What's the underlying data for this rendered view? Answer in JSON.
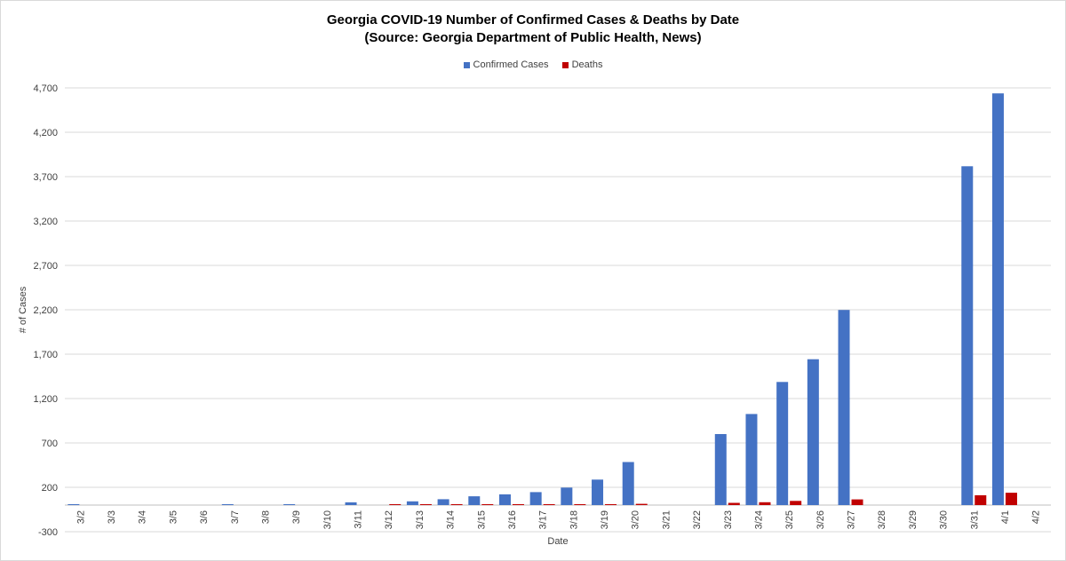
{
  "chart_data": {
    "type": "bar",
    "title_line1": "Georgia COVID-19 Number of Confirmed Cases & Deaths by Date",
    "title_line2": "(Source: Georgia Department of Public Health, News)",
    "xlabel": "Date",
    "ylabel": "# of Cases",
    "ylim": [
      -300,
      4700
    ],
    "yticks": [
      -300,
      200,
      700,
      1200,
      1700,
      2200,
      2700,
      3200,
      3700,
      4200,
      4700
    ],
    "ytick_labels": [
      "-300",
      "200",
      "700",
      "1,200",
      "1,700",
      "2,200",
      "2,700",
      "3,200",
      "3,700",
      "4,200",
      "4,700"
    ],
    "grid": true,
    "legend_position": "top-center",
    "categories": [
      "3/2",
      "3/3",
      "3/4",
      "3/5",
      "3/6",
      "3/7",
      "3/8",
      "3/9",
      "3/10",
      "3/11",
      "3/12",
      "3/13",
      "3/14",
      "3/15",
      "3/16",
      "3/17",
      "3/18",
      "3/19",
      "3/20",
      "3/21",
      "3/22",
      "3/23",
      "3/24",
      "3/25",
      "3/26",
      "3/27",
      "3/28",
      "3/29",
      "3/30",
      "3/31",
      "4/1",
      "4/2"
    ],
    "series": [
      {
        "name": "Confirmed Cases",
        "color": "#4472c4",
        "values": [
          2,
          0,
          0,
          0,
          0,
          2,
          0,
          5,
          0,
          31,
          0,
          42,
          66,
          99,
          121,
          146,
          197,
          287,
          485,
          0,
          0,
          800,
          1026,
          1387,
          1643,
          2198,
          0,
          0,
          0,
          3817,
          4638,
          0
        ]
      },
      {
        "name": "Deaths",
        "color": "#c00000",
        "values": [
          0,
          0,
          0,
          0,
          0,
          0,
          0,
          0,
          0,
          0,
          1,
          1,
          1,
          1,
          3,
          1,
          10,
          10,
          14,
          0,
          0,
          25,
          32,
          47,
          0,
          64,
          0,
          0,
          0,
          111,
          139,
          0
        ]
      }
    ]
  }
}
